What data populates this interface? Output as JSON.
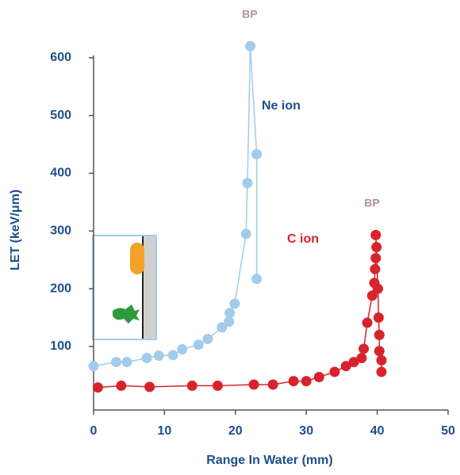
{
  "chart_data": {
    "type": "line",
    "x_label": "Range In Water (mm)",
    "y_label": "LET (keV/μm)",
    "annotations": [
      "BP",
      "BP"
    ],
    "xlim": [
      0,
      50
    ],
    "xticks": [
      0,
      10,
      20,
      30,
      40,
      50
    ],
    "ylim": [
      -10,
      630
    ],
    "yticks": [
      100,
      200,
      300,
      400,
      500,
      600
    ],
    "series": [
      {
        "name": "Ne ion",
        "color": "#a3cbeb",
        "x": [
          0,
          3.2,
          4.7,
          7.5,
          9.2,
          11.2,
          12.5,
          14.8,
          16.1,
          18.1,
          19.1,
          19.2,
          19.9,
          21.5,
          21.7,
          22.1,
          23.0,
          23.0
        ],
        "values": [
          66,
          73,
          73,
          80,
          84,
          85,
          95,
          103,
          113,
          133,
          143,
          158,
          174,
          295,
          383,
          620,
          433,
          217
        ]
      },
      {
        "name": "C ion",
        "color": "#d8232c",
        "x": [
          0.6,
          3.9,
          7.9,
          13.9,
          17.5,
          22.6,
          25.3,
          28.2,
          30.0,
          31.8,
          34.0,
          35.6,
          36.7,
          37.8,
          38.1,
          38.6,
          39.3,
          39.6,
          39.7,
          39.8,
          39.9,
          39.8,
          40.1,
          40.2,
          40.3,
          40.3,
          40.6,
          40.6
        ],
        "values": [
          29,
          32,
          30,
          32,
          32,
          34,
          34,
          40,
          40,
          47,
          56,
          66,
          73,
          80,
          96,
          141,
          188,
          210,
          234,
          253,
          272,
          293,
          200,
          150,
          120,
          92,
          76,
          56
        ]
      }
    ]
  }
}
